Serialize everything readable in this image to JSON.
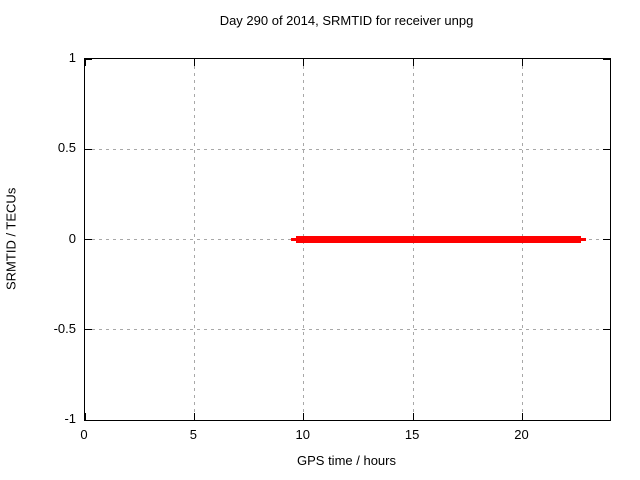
{
  "chart_data": {
    "type": "line",
    "title": "Day 290 of 2014, SRMTID for receiver unpg",
    "xlabel": "GPS time / hours",
    "ylabel": "SRMTID / TECUs",
    "xlim": [
      0,
      24
    ],
    "ylim": [
      -1,
      1
    ],
    "grid": true,
    "legend_position": "none",
    "x_ticks": [
      {
        "value": 0,
        "label": "0"
      },
      {
        "value": 5,
        "label": "5"
      },
      {
        "value": 10,
        "label": "10"
      },
      {
        "value": 15,
        "label": "15"
      },
      {
        "value": 20,
        "label": "20"
      }
    ],
    "y_ticks": [
      {
        "value": 1,
        "label": "1"
      },
      {
        "value": 0.5,
        "label": "0.5"
      },
      {
        "value": 0,
        "label": "0"
      },
      {
        "value": -0.5,
        "label": "-0.5"
      },
      {
        "value": -1,
        "label": "-1"
      }
    ],
    "series": [
      {
        "name": "SRMTID",
        "color": "#ff0000",
        "y_value": 0.0,
        "x_start": 9.4,
        "x_end": 22.9
      }
    ]
  },
  "colors": {
    "background": "#ffffff",
    "plot_border": "#000000",
    "grid": "#a8a8a8",
    "text": "#000000",
    "series_red": "#ff0000"
  }
}
